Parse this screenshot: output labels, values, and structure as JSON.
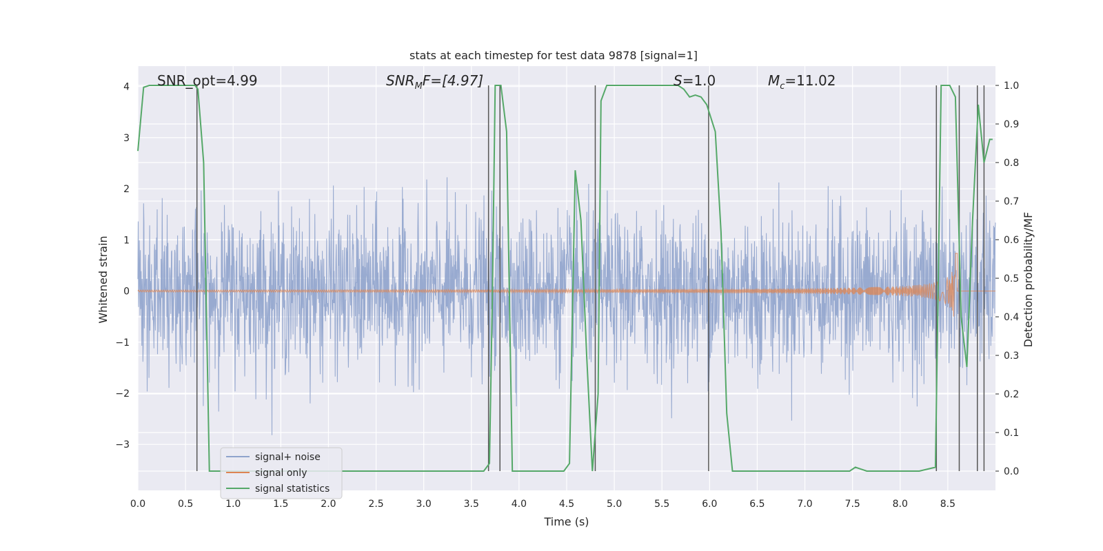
{
  "chart_data": {
    "type": "line",
    "title": "stats at each timestep for test data 9878 [signal=1]",
    "xlabel": "Time (s)",
    "ylabel_left": "Whitened strain",
    "ylabel_right": "Detection probability/MF",
    "xlim": [
      0.0,
      9.0
    ],
    "ylim_left": [
      -3.9,
      4.4
    ],
    "ylim_right": [
      -0.05,
      1.05
    ],
    "x_ticks": [
      "0.0",
      "0.5",
      "1.0",
      "1.5",
      "2.0",
      "2.5",
      "3.0",
      "3.5",
      "4.0",
      "4.5",
      "5.0",
      "5.5",
      "6.0",
      "6.5",
      "7.0",
      "7.5",
      "8.0",
      "8.5"
    ],
    "y_left_ticks": [
      "4",
      "3",
      "2",
      "1",
      "0",
      "−1",
      "−2",
      "−3"
    ],
    "y_right_ticks": [
      "1.0",
      "0.9",
      "0.8",
      "0.7",
      "0.6",
      "0.5",
      "0.4",
      "0.3",
      "0.2",
      "0.1",
      "0.0"
    ],
    "grid": true,
    "legend_position": "lower-left",
    "annotations": {
      "snr_opt": "SNR_opt=4.99",
      "snr_mf_prefix": "SNR",
      "snr_mf_sub": "M",
      "snr_mf_suffix": "F=[4.97]",
      "s_var": "S",
      "s_value": "=1.0",
      "mc_var": "M",
      "mc_sub": "c",
      "mc_value": "=11.02"
    },
    "series": [
      {
        "name": "signal+ noise",
        "color": "#8fa3cc",
        "axis": "left",
        "noise_std": 0.75,
        "approx_range": [
          -3.6,
          3.6
        ]
      },
      {
        "name": "signal only",
        "color": "#dd8452",
        "axis": "left",
        "description_values": {
          "start_amplitude": 0.0,
          "end_amplitude": 0.75,
          "merger_time": 8.6
        }
      },
      {
        "name": "signal statistics",
        "color": "#55a868",
        "axis": "right",
        "x": [
          0.0,
          0.06,
          0.12,
          0.18,
          0.24,
          0.3,
          0.36,
          0.42,
          0.48,
          0.54,
          0.6,
          0.63,
          0.69,
          0.75,
          0.81,
          0.9,
          1.5,
          2.0,
          2.5,
          3.0,
          3.5,
          3.63,
          3.69,
          3.72,
          3.75,
          3.81,
          3.87,
          3.93,
          3.99,
          4.2,
          4.47,
          4.53,
          4.59,
          4.65,
          4.71,
          4.77,
          4.83,
          4.86,
          4.92,
          5.0,
          5.5,
          5.61,
          5.67,
          5.73,
          5.79,
          5.85,
          5.91,
          5.97,
          6.06,
          6.12,
          6.18,
          6.24,
          6.3,
          6.5,
          7.0,
          7.47,
          7.53,
          7.59,
          7.65,
          7.71,
          7.8,
          8.2,
          8.37,
          8.4,
          8.43,
          8.46,
          8.52,
          8.58,
          8.64,
          8.7,
          8.76,
          8.82,
          8.88,
          8.94,
          8.97
        ],
        "y": [
          0.83,
          0.995,
          1.0,
          1.0,
          1.0,
          1.0,
          1.0,
          1.0,
          1.0,
          1.0,
          1.0,
          0.99,
          0.8,
          0.0,
          0.0,
          0.0,
          0.0,
          0.0,
          0.0,
          0.0,
          0.0,
          0.0,
          0.02,
          0.45,
          1.0,
          1.0,
          0.88,
          0.0,
          0.0,
          0.0,
          0.0,
          0.02,
          0.78,
          0.65,
          0.3,
          0.0,
          0.2,
          0.96,
          1.0,
          1.0,
          1.0,
          1.0,
          1.0,
          0.99,
          0.97,
          0.975,
          0.97,
          0.95,
          0.88,
          0.62,
          0.15,
          0.0,
          0.0,
          0.0,
          0.0,
          0.0,
          0.01,
          0.005,
          0.0,
          0.0,
          0.0,
          0.0,
          0.01,
          0.5,
          1.0,
          1.0,
          1.0,
          0.97,
          0.4,
          0.27,
          0.65,
          0.95,
          0.8,
          0.86,
          0.86
        ]
      }
    ],
    "vertical_lines_x": [
      0.62,
      3.68,
      3.8,
      4.8,
      5.99,
      8.38,
      8.62,
      8.81,
      8.88
    ]
  }
}
